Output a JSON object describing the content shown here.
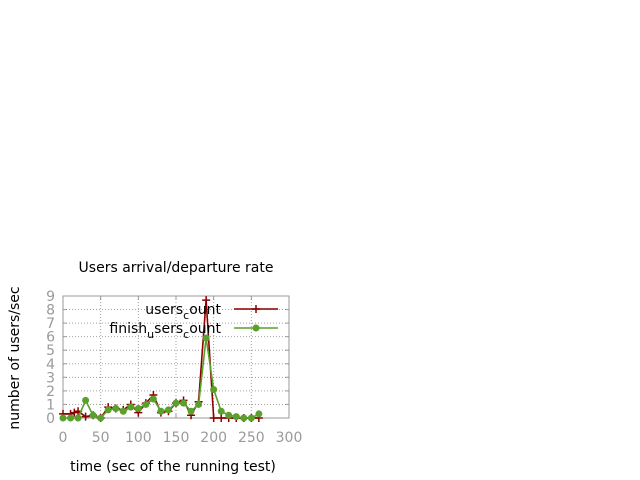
{
  "chart_data": {
    "type": "line",
    "title": "Users arrival/departure rate",
    "xlabel": "time (sec of the running test)",
    "ylabel": "number of users/sec",
    "xlim": [
      0,
      300
    ],
    "ylim": [
      0,
      9
    ],
    "xticks": [
      "0",
      "50",
      "100",
      "150",
      "200",
      "250",
      "300"
    ],
    "yticks": [
      "0",
      "1",
      "2",
      "3",
      "4",
      "5",
      "6",
      "7",
      "8",
      "9"
    ],
    "grid": true,
    "legend_position": "top-right",
    "series": [
      {
        "name": "users_count",
        "legend_main": "users",
        "legend_sub": "c",
        "legend_tail": "ount",
        "color": "#8b0000",
        "marker": "plus",
        "points": [
          [
            0,
            0.3
          ],
          [
            10,
            0.3
          ],
          [
            15,
            0.4
          ],
          [
            20,
            0.5
          ],
          [
            30,
            0.1
          ],
          [
            40,
            0.2
          ],
          [
            50,
            0.0
          ],
          [
            60,
            0.8
          ],
          [
            70,
            0.7
          ],
          [
            80,
            0.6
          ],
          [
            90,
            1.0
          ],
          [
            100,
            0.4
          ],
          [
            110,
            1.1
          ],
          [
            120,
            1.7
          ],
          [
            130,
            0.4
          ],
          [
            140,
            0.5
          ],
          [
            150,
            1.1
          ],
          [
            160,
            1.3
          ],
          [
            170,
            0.2
          ],
          [
            180,
            1.2
          ],
          [
            190,
            8.7
          ],
          [
            200,
            0.0
          ],
          [
            210,
            0.0
          ],
          [
            220,
            0.0
          ],
          [
            230,
            0.0
          ],
          [
            240,
            0.0
          ],
          [
            250,
            0.0
          ],
          [
            260,
            0.0
          ]
        ]
      },
      {
        "name": "finish_users_count",
        "legend_main": "finish",
        "legend_sub": "u",
        "legend_tail": "sers",
        "legend_sub2": "c",
        "legend_tail2": "ount",
        "color": "#5aa02c",
        "marker": "circle",
        "points": [
          [
            0,
            0.0
          ],
          [
            10,
            0.0
          ],
          [
            20,
            0.0
          ],
          [
            30,
            1.3
          ],
          [
            40,
            0.2
          ],
          [
            50,
            0.0
          ],
          [
            60,
            0.6
          ],
          [
            70,
            0.7
          ],
          [
            80,
            0.5
          ],
          [
            90,
            0.8
          ],
          [
            100,
            0.7
          ],
          [
            110,
            1.0
          ],
          [
            120,
            1.4
          ],
          [
            130,
            0.5
          ],
          [
            140,
            0.6
          ],
          [
            150,
            1.1
          ],
          [
            160,
            1.1
          ],
          [
            170,
            0.5
          ],
          [
            180,
            1.0
          ],
          [
            190,
            5.9
          ],
          [
            200,
            2.1
          ],
          [
            210,
            0.5
          ],
          [
            220,
            0.2
          ],
          [
            230,
            0.1
          ],
          [
            240,
            0.0
          ],
          [
            250,
            0.0
          ],
          [
            260,
            0.3
          ]
        ]
      }
    ]
  }
}
